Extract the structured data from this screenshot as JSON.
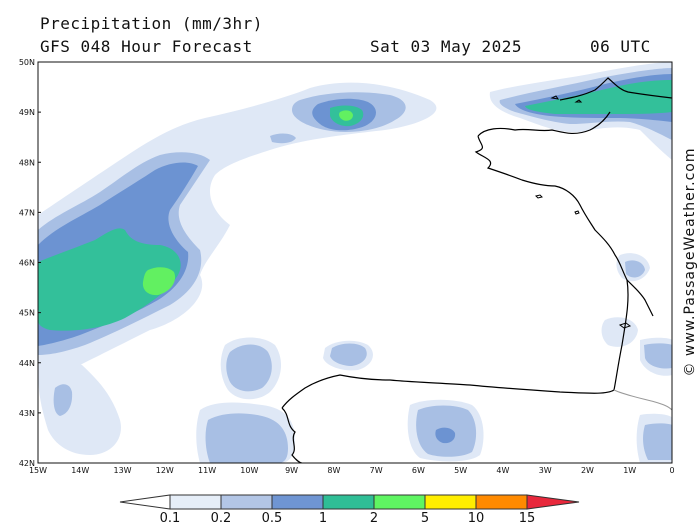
{
  "header": {
    "title": "Precipitation (mm/3hr)",
    "subtitle": "GFS 048 Hour Forecast",
    "date": "Sat 03 May 2025",
    "time": "06 UTC"
  },
  "watermark": "© www.PassageWeather.com",
  "axes": {
    "lat_labels": [
      "50N",
      "49N",
      "48N",
      "47N",
      "46N",
      "45N",
      "44N",
      "43N",
      "42N"
    ],
    "lon_labels": [
      "15W",
      "14W",
      "13W",
      "12W",
      "11W",
      "10W",
      "9W",
      "8W",
      "7W",
      "6W",
      "5W",
      "4W",
      "3W",
      "2W",
      "1W",
      "0"
    ],
    "lat_range": [
      42,
      50
    ],
    "lon_range": [
      -15,
      0
    ]
  },
  "legend": {
    "labels": [
      "0.1",
      "0.2",
      "0.5",
      "1",
      "2",
      "5",
      "10",
      "15"
    ],
    "colors": [
      "#e6eef8",
      "#b3c6e6",
      "#6f95d3",
      "#2fbe96",
      "#5ff562",
      "#ffee00",
      "#ff8a00",
      "#e8283c"
    ]
  },
  "colors": {
    "c1": "#dfe8f6",
    "c2": "#a8bfe4",
    "c3": "#6c93d2",
    "c4": "#33c09a",
    "c5": "#62f061"
  }
}
